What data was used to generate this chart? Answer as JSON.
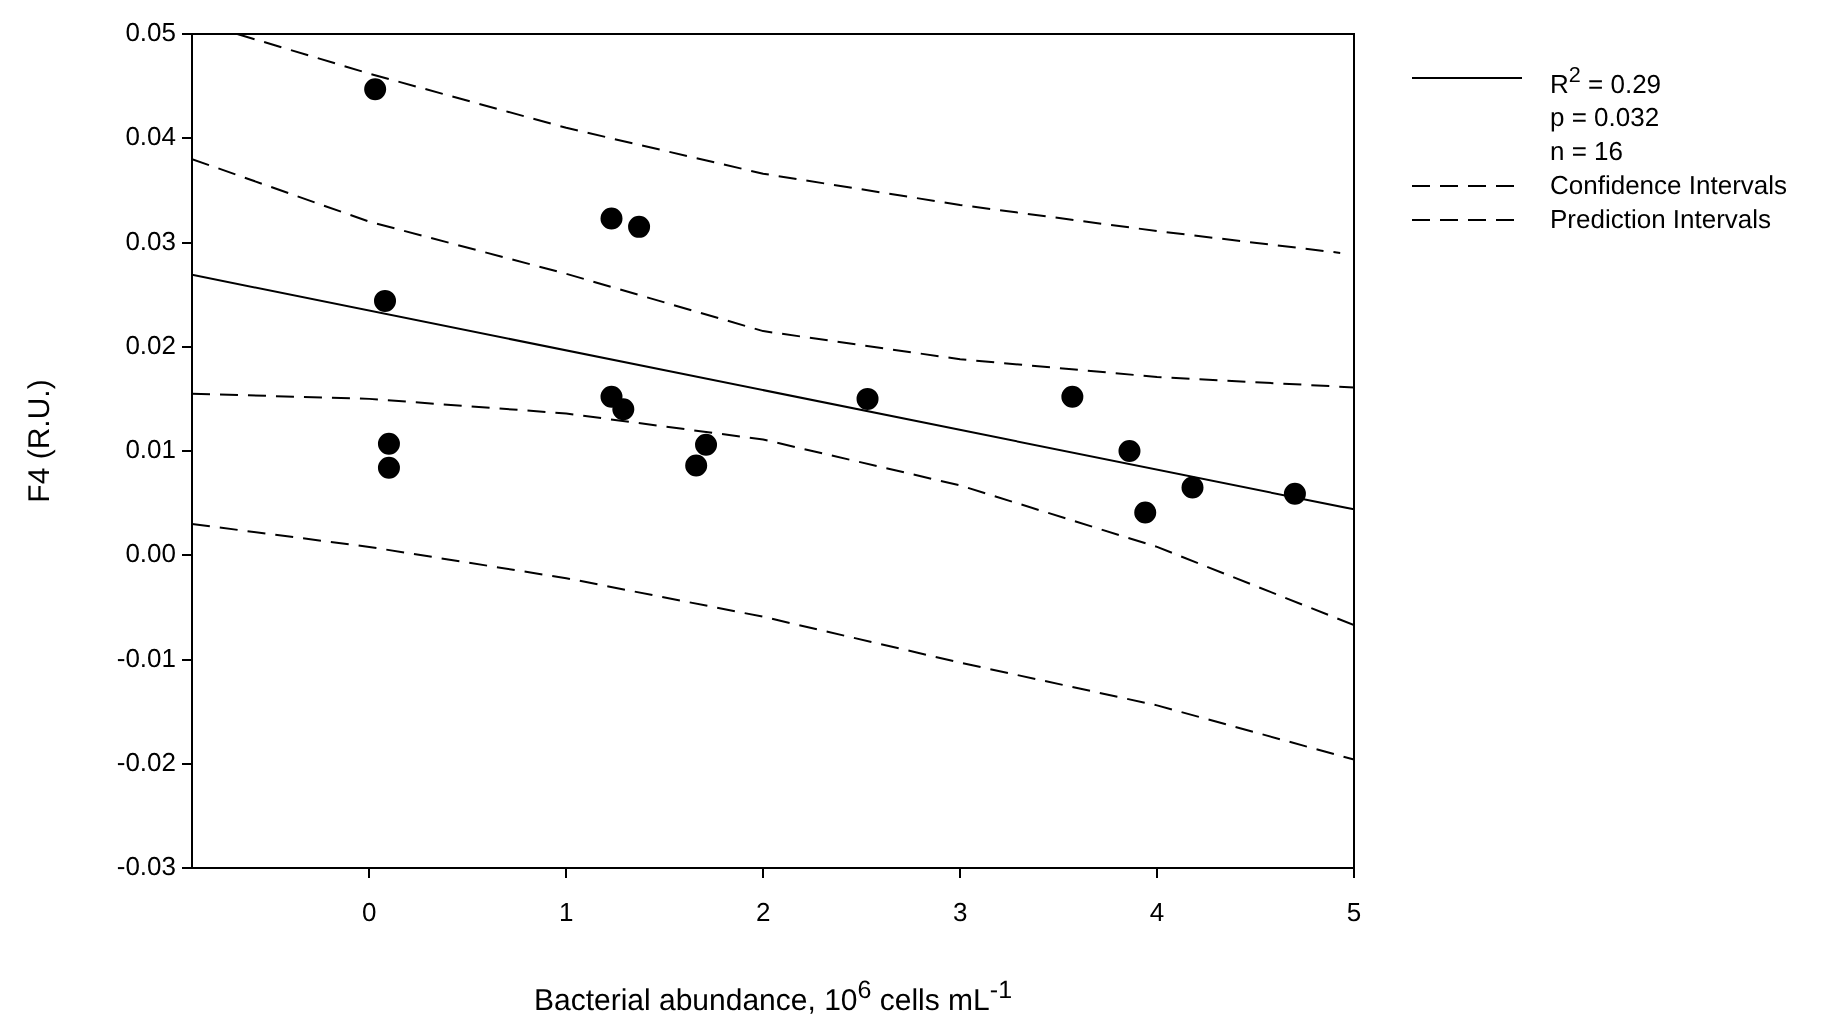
{
  "chart_data": {
    "type": "scatter",
    "xlabel": "Bacterial abundance, 10$^{6}$ cells mL$^{-1}$",
    "ylabel": "F4 (R.U.)",
    "xlim": [
      -0.9,
      5
    ],
    "xticks": [
      0,
      1,
      2,
      3,
      4,
      5
    ],
    "ylim": [
      -0.03,
      0.05
    ],
    "yticks": [
      {
        "value": -0.03,
        "label": "-0.03"
      },
      {
        "value": -0.02,
        "label": "-0.02"
      },
      {
        "value": -0.01,
        "label": "-0.01"
      },
      {
        "value": 0,
        "label": "0.00"
      },
      {
        "value": 0.01,
        "label": "0.01"
      },
      {
        "value": 0.02,
        "label": "0.02"
      },
      {
        "value": 0.03,
        "label": "0.03"
      },
      {
        "value": 0.04,
        "label": "0.04"
      },
      {
        "value": 0.05,
        "label": "0.05"
      }
    ],
    "grid": false,
    "legend": "top right",
    "marker": "circle",
    "annotations": [
      "p = 0.032",
      "n = 16"
    ],
    "series": [
      {
        "color": "#000000",
        "x": [
          0.03,
          0.08,
          0.1,
          0.1,
          1.23,
          1.37,
          1.23,
          1.29,
          1.66,
          1.71,
          2.53,
          3.57,
          3.86,
          3.94,
          4.18,
          4.7
        ],
        "values": [
          0.0447,
          0.0244,
          0.0107,
          0.0084,
          0.0323,
          0.0315,
          0.0152,
          0.014,
          0.0086,
          0.0106,
          0.015,
          0.0152,
          0.01,
          0.0041,
          0.0065,
          0.0059
        ]
      },
      {
        "type": "line",
        "name": "R$^{2}$ = 0.29",
        "color": "#000000",
        "line_style": "solid",
        "marker": "none",
        "x": [
          -0.9,
          5
        ],
        "values": [
          0.0269,
          0.0044
        ]
      },
      {
        "type": "line",
        "name": "Confidence Intervals",
        "color": "#000000",
        "line_style": "dashed",
        "marker": "none",
        "x": [
          -0.9,
          0,
          1,
          2,
          3,
          4,
          5
        ],
        "values": [
          0.038,
          0.032,
          0.027,
          0.0215,
          0.0188,
          0.0171,
          0.0161
        ]
      },
      {
        "type": "line",
        "color": "#000000",
        "line_style": "dashed",
        "marker": "none",
        "x": [
          -0.9,
          0,
          1,
          2,
          3,
          4,
          5
        ],
        "values": [
          0.0155,
          0.015,
          0.0136,
          0.0111,
          0.0067,
          0.0008,
          -0.0067
        ]
      },
      {
        "type": "line",
        "name": "Prediction Intervals",
        "color": "#000000",
        "line_style": "dashed",
        "marker": "none",
        "x": [
          -0.67,
          0,
          1,
          2,
          3,
          4,
          4.93
        ],
        "values": [
          0.05,
          0.0462,
          0.041,
          0.0366,
          0.0336,
          0.0311,
          0.029
        ]
      },
      {
        "type": "line",
        "color": "#000000",
        "line_style": "dashed",
        "marker": "none",
        "x": [
          -0.9,
          0,
          1,
          2,
          3,
          4,
          5
        ],
        "values": [
          0.003,
          0.0008,
          -0.0022,
          -0.0059,
          -0.0103,
          -0.0144,
          -0.0196
        ]
      }
    ]
  }
}
